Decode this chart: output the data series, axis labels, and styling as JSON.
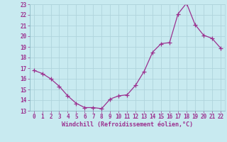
{
  "x": [
    0,
    1,
    2,
    3,
    4,
    5,
    6,
    7,
    8,
    9,
    10,
    11,
    12,
    13,
    14,
    15,
    16,
    17,
    18,
    19,
    20,
    21,
    22
  ],
  "y": [
    16.8,
    16.5,
    16.0,
    15.3,
    14.4,
    13.7,
    13.3,
    13.3,
    13.2,
    14.1,
    14.4,
    14.5,
    15.4,
    16.7,
    18.5,
    19.3,
    19.4,
    22.1,
    23.1,
    21.1,
    20.1,
    19.8,
    18.9
  ],
  "line_color": "#9b308f",
  "marker": "+",
  "marker_size": 4,
  "bg_color": "#c8eaf0",
  "grid_color": "#b0d4dc",
  "xlabel": "Windchill (Refroidissement éolien,°C)",
  "xlabel_color": "#9b308f",
  "tick_color": "#9b308f",
  "ylim": [
    13,
    23
  ],
  "xlim": [
    -0.5,
    22.5
  ],
  "yticks": [
    13,
    14,
    15,
    16,
    17,
    18,
    19,
    20,
    21,
    22,
    23
  ],
  "xticks": [
    0,
    1,
    2,
    3,
    4,
    5,
    6,
    7,
    8,
    9,
    10,
    11,
    12,
    13,
    14,
    15,
    16,
    17,
    18,
    19,
    20,
    21,
    22
  ],
  "tick_fontsize": 5.5,
  "xlabel_fontsize": 6.0,
  "linewidth": 0.9,
  "markeredgewidth": 0.9
}
